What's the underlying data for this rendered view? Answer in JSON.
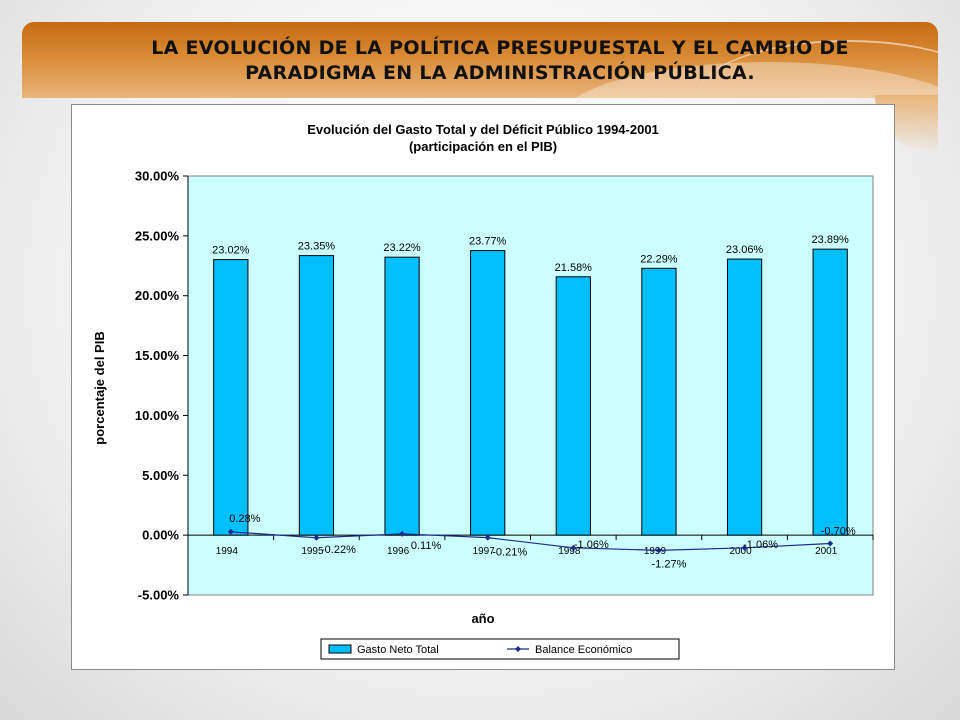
{
  "slide": {
    "title": "LA EVOLUCIÓN DE LA POLÍTICA PRESUPUESTAL Y EL CAMBIO DE PARADIGMA EN LA ADMINISTRACIÓN PÚBLICA.",
    "accent_color": "#c56a12"
  },
  "chart_data": {
    "type": "bar",
    "title": "Evolución del Gasto Total y del Déficit Público 1994-2001",
    "subtitle": "(participación en el PIB)",
    "xlabel": "año",
    "ylabel": "porcentaje del PIB",
    "categories": [
      "1994",
      "1995",
      "1996",
      "1997",
      "1998",
      "1999",
      "2000",
      "2001"
    ],
    "ylim": [
      -5,
      30
    ],
    "yticks": [
      30,
      25,
      20,
      15,
      10,
      5,
      0,
      -5
    ],
    "ytick_labels": [
      "30.00%",
      "25.00%",
      "20.00%",
      "15.00%",
      "10.00%",
      "5.00%",
      "0.00%",
      "-5.00%"
    ],
    "series": [
      {
        "name": "Gasto Neto Total",
        "kind": "bar",
        "color": "#00bfff",
        "values": [
          23.02,
          23.35,
          23.22,
          23.77,
          21.58,
          22.29,
          23.06,
          23.89
        ],
        "labels": [
          "23.02%",
          "23.35%",
          "23.22%",
          "23.77%",
          "21.58%",
          "22.29%",
          "23.06%",
          "23.89%"
        ]
      },
      {
        "name": "Balance Económico",
        "kind": "line",
        "color": "#1f2a8c",
        "values": [
          0.28,
          -0.22,
          0.11,
          -0.21,
          -1.06,
          -1.27,
          -1.06,
          -0.7
        ],
        "labels": [
          "0.28%",
          "-0.22%",
          "0.11%",
          "-0.21%",
          "-1.06%",
          "-1.27%",
          "-1.06%",
          "-0.70%"
        ]
      }
    ],
    "plot_background": "#ccffff",
    "grid": false,
    "legend_position": "bottom"
  }
}
